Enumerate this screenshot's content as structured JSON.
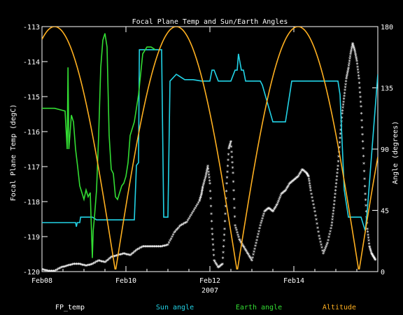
{
  "chart_data": {
    "type": "line",
    "title": "Focal Plane Temp and Sun/Earth Angles",
    "xlabel": "2007",
    "ylabel": "Focal Plane Temp (degC)",
    "y2label": "Angle (degrees)",
    "xlim": [
      0,
      8.0
    ],
    "ylim": [
      -120,
      -113
    ],
    "y2lim": [
      0,
      180
    ],
    "x_ticks": [
      {
        "x": 0,
        "label": "Feb08"
      },
      {
        "x": 2,
        "label": "Feb10"
      },
      {
        "x": 4,
        "label": "Feb12"
      },
      {
        "x": 6,
        "label": "Feb14"
      }
    ],
    "y_ticks": [
      -120,
      -119,
      -118,
      -117,
      -116,
      -115,
      -114,
      -113
    ],
    "y2_ticks": [
      0,
      45,
      90,
      135,
      180
    ],
    "colors": {
      "background": "#000000",
      "axes": "#ffffff",
      "fp_temp": "#ffffff",
      "sun_angle": "#22d3e6",
      "earth_angle": "#33dd33",
      "altitude": "#ffb020"
    },
    "legend": {
      "placement": "bottom",
      "items": [
        {
          "key": "fp_temp",
          "label": "FP_temp"
        },
        {
          "key": "sun_angle",
          "label": "Sun angle"
        },
        {
          "key": "earth_angle",
          "label": "Earth angle"
        },
        {
          "key": "altitude",
          "label": "Altitude"
        }
      ]
    },
    "series": [
      {
        "key": "fp_temp",
        "axis": "left",
        "style": "markers",
        "x": [
          0.0,
          0.15,
          0.3,
          0.45,
          0.6,
          0.75,
          0.9,
          1.05,
          1.2,
          1.35,
          1.5,
          1.65,
          1.8,
          1.95,
          2.1,
          2.25,
          2.4,
          2.55,
          2.7,
          2.85,
          3.0,
          3.15,
          3.3,
          3.45,
          3.6,
          3.75,
          3.8,
          3.83,
          3.9,
          3.95,
          4.0,
          4.05,
          4.1,
          4.2,
          4.3,
          4.35,
          4.4,
          4.45,
          4.5,
          4.55,
          4.6,
          4.7,
          4.8,
          4.9,
          5.0,
          5.1,
          5.2,
          5.3,
          5.4,
          5.5,
          5.6,
          5.7,
          5.8,
          5.9,
          6.0,
          6.1,
          6.2,
          6.3,
          6.35,
          6.4,
          6.5,
          6.6,
          6.7,
          6.8,
          6.9,
          6.95,
          7.0,
          7.05,
          7.1,
          7.15,
          7.2,
          7.25,
          7.3,
          7.35,
          7.4,
          7.45,
          7.5,
          7.55,
          7.6,
          7.65,
          7.7,
          7.75,
          7.8,
          7.85,
          7.9,
          7.95
        ],
        "y": [
          -119.95,
          -120.0,
          -120.0,
          -119.9,
          -119.85,
          -119.8,
          -119.8,
          -119.85,
          -119.8,
          -119.7,
          -119.75,
          -119.6,
          -119.55,
          -119.5,
          -119.55,
          -119.4,
          -119.3,
          -119.3,
          -119.3,
          -119.3,
          -119.25,
          -118.9,
          -118.7,
          -118.6,
          -118.3,
          -118.0,
          -117.8,
          -117.6,
          -117.3,
          -117.0,
          -117.5,
          -118.8,
          -119.7,
          -119.9,
          -119.8,
          -118.8,
          -117.5,
          -116.5,
          -116.3,
          -117.2,
          -118.7,
          -119.1,
          -119.3,
          -119.5,
          -119.7,
          -119.2,
          -118.7,
          -118.3,
          -118.2,
          -118.3,
          -118.1,
          -117.8,
          -117.7,
          -117.5,
          -117.4,
          -117.3,
          -117.1,
          -117.2,
          -117.3,
          -117.7,
          -118.3,
          -119.0,
          -119.5,
          -119.2,
          -118.7,
          -118.2,
          -117.6,
          -117.0,
          -116.2,
          -115.5,
          -115.0,
          -114.5,
          -114.2,
          -113.8,
          -113.5,
          -113.7,
          -114.0,
          -114.5,
          -115.3,
          -116.5,
          -117.8,
          -118.8,
          -119.3,
          -119.5,
          -119.6,
          -119.7
        ]
      },
      {
        "key": "sun_angle",
        "axis": "right",
        "style": "line",
        "x": [
          0.0,
          0.8,
          0.82,
          0.84,
          0.9,
          0.92,
          1.0,
          1.2,
          1.3,
          1.5,
          1.7,
          1.8,
          1.85,
          2.0,
          2.2,
          2.25,
          2.3,
          2.32,
          2.45,
          2.48,
          2.5,
          2.6,
          2.7,
          2.8,
          2.85,
          2.9,
          2.95,
          3.0,
          3.05,
          3.2,
          3.4,
          3.6,
          3.8,
          4.0,
          4.05,
          4.1,
          4.2,
          4.5,
          4.6,
          4.65,
          4.68,
          4.75,
          4.8,
          4.85,
          4.9,
          5.1,
          5.2,
          5.25,
          5.5,
          5.8,
          5.95,
          6.2,
          6.5,
          6.6,
          6.65,
          6.7,
          6.72,
          6.75,
          6.8,
          6.9,
          6.95,
          7.0,
          7.05,
          7.1,
          7.2,
          7.3,
          7.4,
          7.5,
          7.6,
          7.7,
          7.75,
          8.0
        ],
        "y": [
          36,
          36,
          33,
          36,
          36,
          40,
          40,
          40,
          38,
          38,
          38,
          38,
          38,
          38,
          38,
          78,
          80,
          163,
          163,
          163,
          163,
          163,
          163,
          163,
          163,
          40,
          40,
          40,
          140,
          145,
          141,
          141,
          140,
          140,
          148,
          148,
          140,
          140,
          148,
          148,
          160,
          148,
          148,
          140,
          140,
          140,
          140,
          137,
          110,
          110,
          140,
          140,
          140,
          140,
          140,
          140,
          140,
          140,
          140,
          140,
          140,
          140,
          140,
          130,
          60,
          40,
          40,
          40,
          40,
          30,
          45,
          145
        ]
      },
      {
        "key": "earth_angle",
        "axis": "right",
        "style": "line",
        "x": [
          0.0,
          0.3,
          0.55,
          0.6,
          0.62,
          0.64,
          0.7,
          0.75,
          0.8,
          0.85,
          0.9,
          1.0,
          1.05,
          1.1,
          1.15,
          1.2,
          1.22,
          1.25,
          1.3,
          1.35,
          1.4,
          1.45,
          1.5,
          1.55,
          1.6,
          1.65,
          1.7,
          1.75,
          1.8,
          1.85,
          1.9,
          1.95,
          2.0,
          2.05,
          2.1,
          2.2,
          2.3,
          2.4,
          2.5,
          2.6,
          2.7
        ],
        "y": [
          120,
          120,
          118,
          90,
          150,
          90,
          115,
          110,
          90,
          77,
          63,
          53,
          60,
          55,
          58,
          10,
          30,
          40,
          60,
          100,
          150,
          170,
          175,
          165,
          100,
          75,
          72,
          55,
          53,
          58,
          63,
          65,
          70,
          80,
          100,
          110,
          130,
          160,
          165,
          165,
          163
        ]
      },
      {
        "key": "altitude",
        "axis": "right",
        "style": "line",
        "period": 2.9,
        "phase": 0.3,
        "x": [
          0.0,
          0.1,
          0.2,
          0.3,
          0.4,
          0.5,
          0.6,
          0.7,
          0.8,
          0.9,
          1.0,
          1.1,
          1.2,
          1.3,
          1.4,
          1.5,
          1.6,
          1.7,
          1.75,
          1.8,
          1.9,
          2.0,
          2.1,
          2.2,
          2.3,
          2.4,
          2.5,
          2.6,
          2.7,
          2.8,
          2.9,
          3.0,
          3.1,
          3.2,
          3.3,
          3.4,
          3.5,
          3.6,
          3.7,
          3.8,
          3.9,
          4.0,
          4.1,
          4.2,
          4.3,
          4.4,
          4.5,
          4.6,
          4.7,
          4.8,
          4.9,
          5.0,
          5.1,
          5.2,
          5.3,
          5.4,
          5.5,
          5.6,
          5.7,
          5.8,
          5.9,
          6.0,
          6.1,
          6.2,
          6.3,
          6.4,
          6.5,
          6.6,
          6.7,
          6.8,
          6.9,
          7.0,
          7.1,
          7.2,
          7.3,
          7.35,
          7.4,
          7.5,
          7.6,
          7.7,
          7.8,
          7.9,
          8.0
        ],
        "y": [
          165,
          172,
          177,
          180,
          177,
          172,
          163,
          151,
          136,
          118,
          98,
          76,
          55,
          35,
          18,
          6,
          0,
          3,
          10,
          20,
          35,
          55,
          76,
          98,
          118,
          136,
          151,
          163,
          172,
          177,
          180,
          177,
          172,
          163,
          151,
          136,
          118,
          98,
          76,
          55,
          35,
          18,
          6,
          0,
          3,
          10,
          20,
          35,
          55,
          76,
          98,
          118,
          136,
          151,
          163,
          172,
          177,
          180,
          177,
          172,
          163,
          151,
          136,
          118,
          98,
          76,
          55,
          35,
          18,
          6,
          1,
          0,
          3,
          10,
          20,
          27,
          35,
          55,
          76,
          98,
          118,
          136,
          151
        ]
      }
    ]
  }
}
